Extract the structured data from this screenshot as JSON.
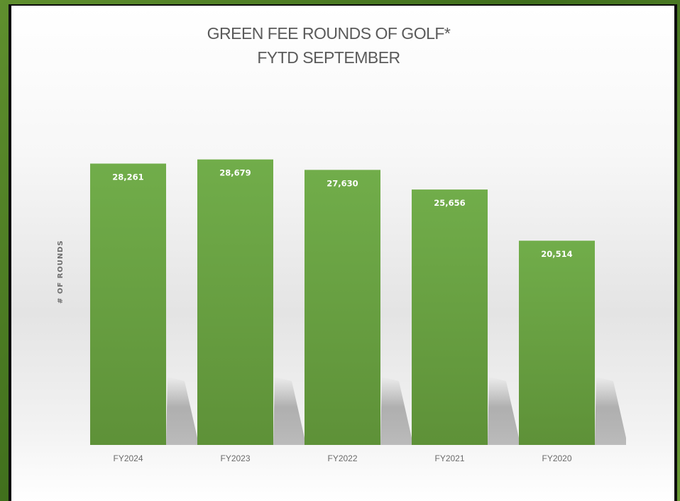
{
  "chart_data": {
    "type": "bar",
    "title": "GREEN FEE ROUNDS OF GOLF*",
    "subtitle": "FYTD SEPTEMBER",
    "xlabel": "",
    "ylabel": "# OF ROUNDS",
    "categories": [
      "FY2024",
      "FY2023",
      "FY2022",
      "FY2021",
      "FY2020"
    ],
    "values": [
      28261,
      28679,
      27630,
      25656,
      20514
    ],
    "data_labels": [
      "28,261",
      "28,679",
      "27,630",
      "25,656",
      "20,514"
    ],
    "ylim": [
      0,
      35000
    ],
    "grid": false,
    "legend": "none",
    "colors": {
      "bar_top": "#71ad4a",
      "bar_bottom": "#5e9138",
      "title": "#5a5a5a",
      "frame": "#3f6e1c"
    }
  }
}
